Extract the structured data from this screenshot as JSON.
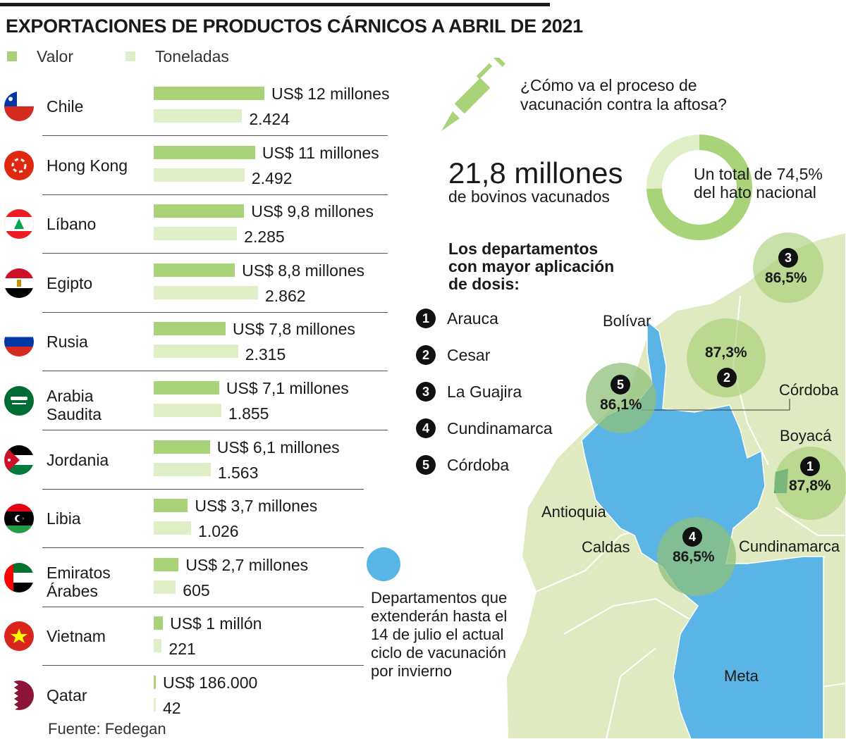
{
  "title": "EXPORTACIONES DE PRODUCTOS CÁRNICOS A ABRIL DE 2021",
  "legend": {
    "valor": "Valor",
    "toneladas": "Toneladas"
  },
  "colors": {
    "valor": "#a9d379",
    "toneladas": "#e1efc6",
    "extension": "#5ab4e6",
    "map_land": "#dfeac0",
    "circle": "#a4cc72"
  },
  "chart_data": {
    "type": "bar",
    "title": "EXPORTACIONES DE PRODUCTOS CÁRNICOS A ABRIL DE 2021",
    "categories": [
      "Chile",
      "Hong Kong",
      "Líbano",
      "Egipto",
      "Rusia",
      "Arabia Saudita",
      "Jordania",
      "Libia",
      "Emiratos Árabes",
      "Vietnam",
      "Qatar"
    ],
    "series": [
      {
        "name": "Valor",
        "unit": "US$ millones",
        "values": [
          12,
          11,
          9.8,
          8.8,
          7.8,
          7.1,
          6.1,
          3.7,
          2.7,
          1,
          0.186
        ]
      },
      {
        "name": "Toneladas",
        "values": [
          2424,
          2492,
          2285,
          2862,
          2315,
          1855,
          1563,
          1026,
          605,
          221,
          42
        ]
      }
    ],
    "rows": [
      {
        "country": [
          "Chile"
        ],
        "valor_label": "US$ 12 millones",
        "ton_label": "2.424",
        "flag": "chile-flag"
      },
      {
        "country": [
          "Hong Kong"
        ],
        "valor_label": "US$ 11 millones",
        "ton_label": "2.492",
        "flag": "hong-kong-flag"
      },
      {
        "country": [
          "Líbano"
        ],
        "valor_label": "US$ 9,8 millones",
        "ton_label": "2.285",
        "flag": "lebanon-flag"
      },
      {
        "country": [
          "Egipto"
        ],
        "valor_label": "US$ 8,8 millones",
        "ton_label": "2.862",
        "flag": "egypt-flag"
      },
      {
        "country": [
          "Rusia"
        ],
        "valor_label": "US$ 7,8 millones",
        "ton_label": "2.315",
        "flag": "russia-flag"
      },
      {
        "country": [
          "Arabia",
          "Saudita"
        ],
        "valor_label": "US$ 7,1 millones",
        "ton_label": "1.855",
        "flag": "saudi-arabia-flag"
      },
      {
        "country": [
          "Jordania"
        ],
        "valor_label": "US$ 6,1 millones",
        "ton_label": "1.563",
        "flag": "jordan-flag"
      },
      {
        "country": [
          "Libia"
        ],
        "valor_label": "US$ 3,7 millones",
        "ton_label": "1.026",
        "flag": "libya-flag"
      },
      {
        "country": [
          "Emiratos",
          "Árabes"
        ],
        "valor_label": "US$ 2,7 millones",
        "ton_label": "605",
        "flag": "uae-flag"
      },
      {
        "country": [
          "Vietnam"
        ],
        "valor_label": "US$ 1 millón",
        "ton_label": "221",
        "flag": "vietnam-flag"
      },
      {
        "country": [
          "Qatar"
        ],
        "valor_label": "US$ 186.000",
        "ton_label": "42",
        "flag": "qatar-flag"
      }
    ]
  },
  "source": "Fuente: Fedegan",
  "vaccination": {
    "question_line1": "¿Cómo va el proceso de",
    "question_line2": "vacunación contra la aftosa?",
    "big_number": "21,8 millones",
    "big_sub": "de bovinos vacunados",
    "donut_text_line1": "Un total de 74,5%",
    "donut_text_line2": "del hato nacional",
    "donut_percent": 74.5,
    "departments_heading": [
      "Los departamentos",
      "con mayor aplicación",
      "de dosis:"
    ],
    "ranking": [
      {
        "n": "1",
        "name": "Arauca"
      },
      {
        "n": "2",
        "name": "Cesar"
      },
      {
        "n": "3",
        "name": "La Guajira"
      },
      {
        "n": "4",
        "name": "Cundinamarca"
      },
      {
        "n": "5",
        "name": "Córdoba"
      }
    ]
  },
  "map": {
    "labels": [
      "Bolívar",
      "Córdoba",
      "Boyacá",
      "Antioquia",
      "Caldas",
      "Cundinamarca",
      "Meta"
    ],
    "circles": [
      {
        "n": "3",
        "pct": "86,5%"
      },
      {
        "n": "2",
        "pct": "87,3%"
      },
      {
        "n": "5",
        "pct": "86,1%"
      },
      {
        "n": "1",
        "pct": "87,8%"
      },
      {
        "n": "4",
        "pct": "86,5%"
      }
    ],
    "extension_text": "Departamentos que extenderán hasta el 14 de julio el actual ciclo de vacunación por invierno"
  }
}
